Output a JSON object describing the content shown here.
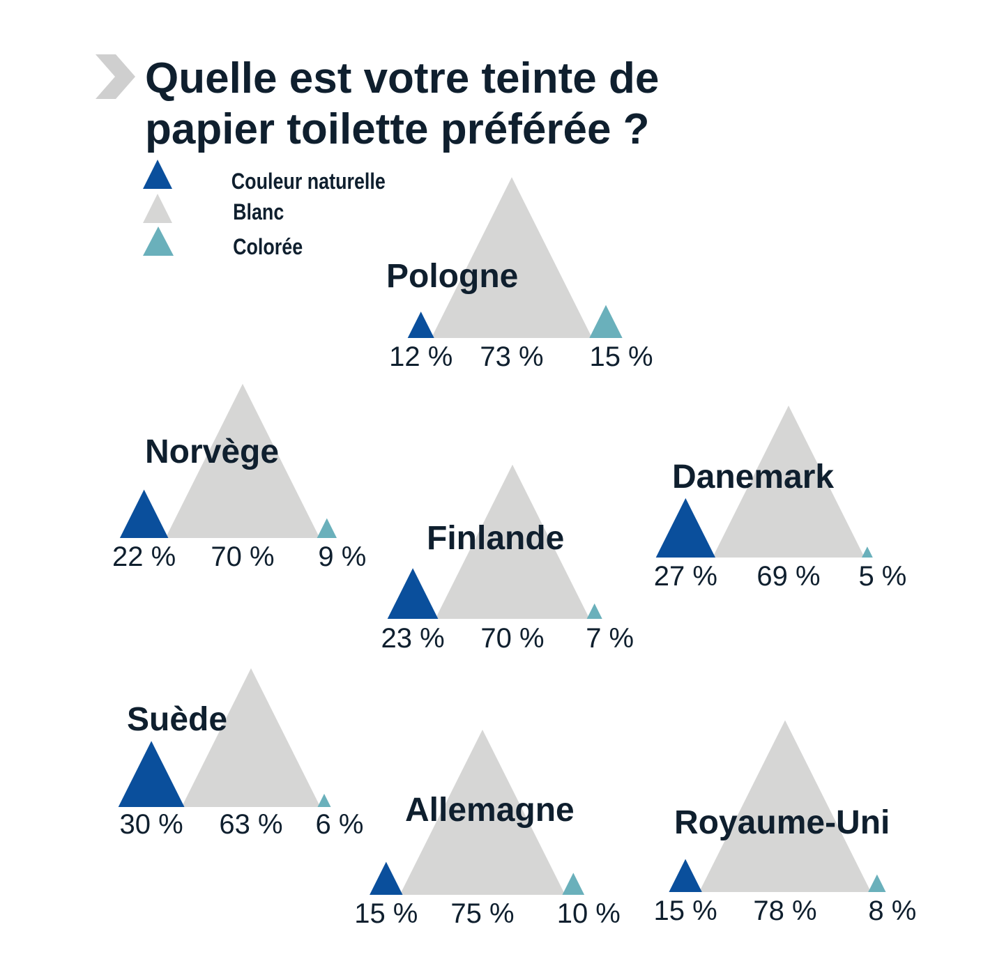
{
  "title": {
    "line1": "Quelle est votre teinte de",
    "line2": "papier toilette préférée ?"
  },
  "colors": {
    "naturelle": "#0a4f9c",
    "blanc": "#d6d6d5",
    "coloree": "#6ab0bb",
    "text": "#0f1f2e",
    "chevron": "#cfcfcf"
  },
  "chart_data": {
    "type": "triangle-proportion",
    "title": "Quelle est votre teinte de papier toilette préférée ?",
    "legend": [
      {
        "key": "naturelle",
        "label": "Couleur naturelle"
      },
      {
        "key": "blanc",
        "label": "Blanc"
      },
      {
        "key": "coloree",
        "label": "Colorée"
      }
    ],
    "unit": "%",
    "countries": [
      {
        "name": "Pologne",
        "naturelle": 12,
        "blanc": 73,
        "coloree": 15
      },
      {
        "name": "Norvège",
        "naturelle": 22,
        "blanc": 70,
        "coloree": 9
      },
      {
        "name": "Finlande",
        "naturelle": 23,
        "blanc": 70,
        "coloree": 7
      },
      {
        "name": "Danemark",
        "naturelle": 27,
        "blanc": 69,
        "coloree": 5
      },
      {
        "name": "Suède",
        "naturelle": 30,
        "blanc": 63,
        "coloree": 6
      },
      {
        "name": "Allemagne",
        "naturelle": 15,
        "blanc": 75,
        "coloree": 10
      },
      {
        "name": "Royaume-Uni",
        "naturelle": 15,
        "blanc": 78,
        "coloree": 8
      }
    ]
  }
}
